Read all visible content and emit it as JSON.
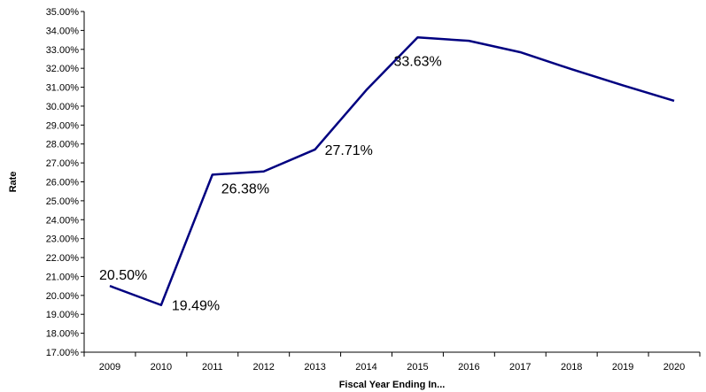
{
  "chart_data": {
    "type": "line",
    "title": "",
    "xlabel": "Fiscal Year Ending In...",
    "ylabel": "Rate",
    "x": [
      "2009",
      "2010",
      "2011",
      "2012",
      "2013",
      "2014",
      "2015",
      "2016",
      "2017",
      "2018",
      "2019",
      "2020"
    ],
    "y_ticks": [
      "17.00%",
      "18.00%",
      "19.00%",
      "20.00%",
      "21.00%",
      "22.00%",
      "23.00%",
      "24.00%",
      "25.00%",
      "26.00%",
      "27.00%",
      "28.00%",
      "29.00%",
      "30.00%",
      "31.00%",
      "32.00%",
      "33.00%",
      "34.00%",
      "35.00%"
    ],
    "ylim": [
      17,
      35
    ],
    "grid": false,
    "legend": "none",
    "series": [
      {
        "values": [
          20.5,
          19.49,
          26.38,
          26.55,
          27.71,
          30.85,
          33.63,
          33.45,
          32.85,
          31.95,
          31.1,
          30.28
        ],
        "color": "#000080"
      }
    ],
    "data_labels": [
      {
        "index": 0,
        "text": "20.50%"
      },
      {
        "index": 1,
        "text": "19.49%"
      },
      {
        "index": 2,
        "text": "26.38%"
      },
      {
        "index": 4,
        "text": "27.71%"
      },
      {
        "index": 6,
        "text": "33.63%"
      }
    ]
  }
}
